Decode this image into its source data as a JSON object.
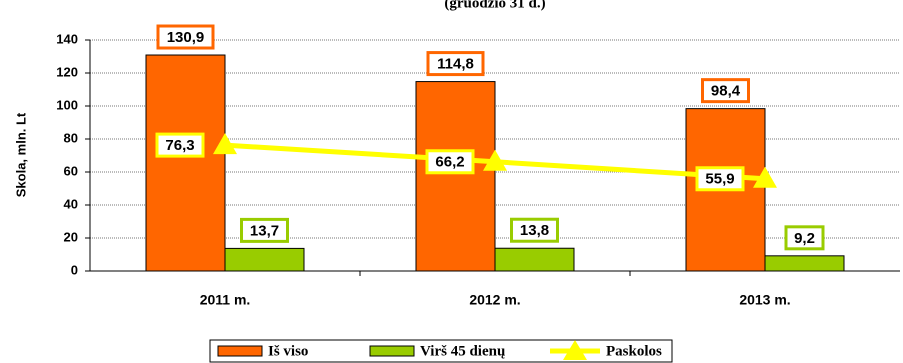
{
  "chart_data": {
    "type": "bar",
    "subtitle": "(gruodžio 31 d.)",
    "y_label": "Skola, mln. Lt",
    "categories": [
      "2011 m.",
      "2012 m.",
      "2013 m."
    ],
    "series": [
      {
        "name": "Iš viso",
        "type": "bar",
        "color": "#ff6600",
        "values": [
          130.9,
          114.8,
          98.4
        ],
        "value_labels": [
          "130,9",
          "114,8",
          "98,4"
        ]
      },
      {
        "name": "Virš 45 dienų",
        "type": "bar",
        "color": "#99cc00",
        "values": [
          13.7,
          13.8,
          9.2
        ],
        "value_labels": [
          "13,7",
          "13,8",
          "9,2"
        ]
      },
      {
        "name": "Paskolos",
        "type": "line",
        "color": "#ffff00",
        "values": [
          76.3,
          66.2,
          55.9
        ],
        "value_labels": [
          "76,3",
          "66,2",
          "55,9"
        ]
      }
    ],
    "ylim": [
      0,
      140
    ],
    "yticks": [
      0,
      20,
      40,
      60,
      80,
      100,
      120,
      140
    ],
    "grid": true
  }
}
